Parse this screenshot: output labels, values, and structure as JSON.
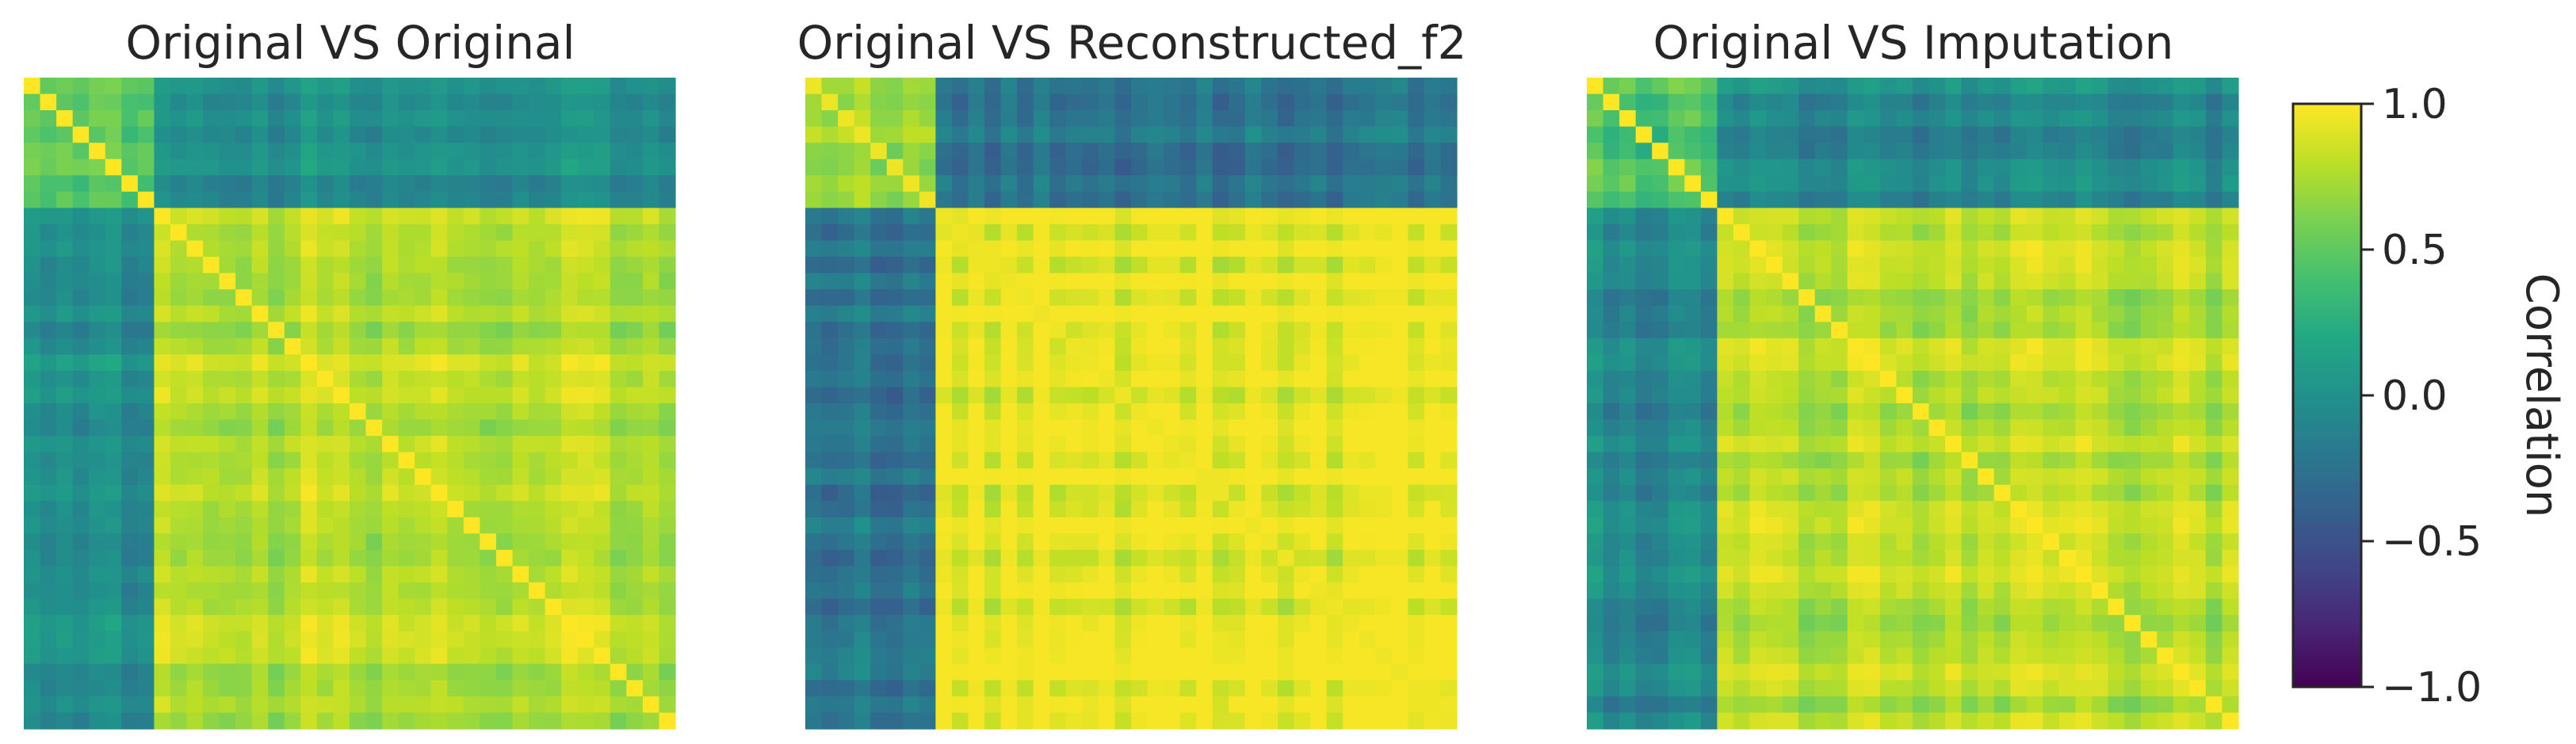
{
  "chart_data": [
    {
      "type": "heatmap",
      "title": "Original VS Original",
      "n": 40,
      "pattern": {
        "group_a_size": 8,
        "diag": 1.0,
        "within_a": 0.45,
        "within_b": 0.78,
        "between": -0.05
      }
    },
    {
      "type": "heatmap",
      "title": "Original VS Reconstructed_f2",
      "n": 40,
      "pattern": {
        "group_a_size": 8,
        "diag": 0.95,
        "within_a": 0.75,
        "within_b": 0.96,
        "between": -0.2
      }
    },
    {
      "type": "heatmap",
      "title": "Original VS Imputation",
      "n": 40,
      "pattern": {
        "group_a_size": 8,
        "diag": 1.0,
        "within_a": 0.45,
        "within_b": 0.78,
        "between": -0.07
      }
    }
  ],
  "colorbar": {
    "label": "Correlation",
    "colormap": "viridis",
    "range": [
      -1.0,
      1.0
    ],
    "ticks": [
      {
        "value": 1.0,
        "label": "1.0"
      },
      {
        "value": 0.5,
        "label": "0.5"
      },
      {
        "value": 0.0,
        "label": "0.0"
      },
      {
        "value": -0.5,
        "label": "−0.5"
      },
      {
        "value": -1.0,
        "label": "−1.0"
      }
    ]
  }
}
